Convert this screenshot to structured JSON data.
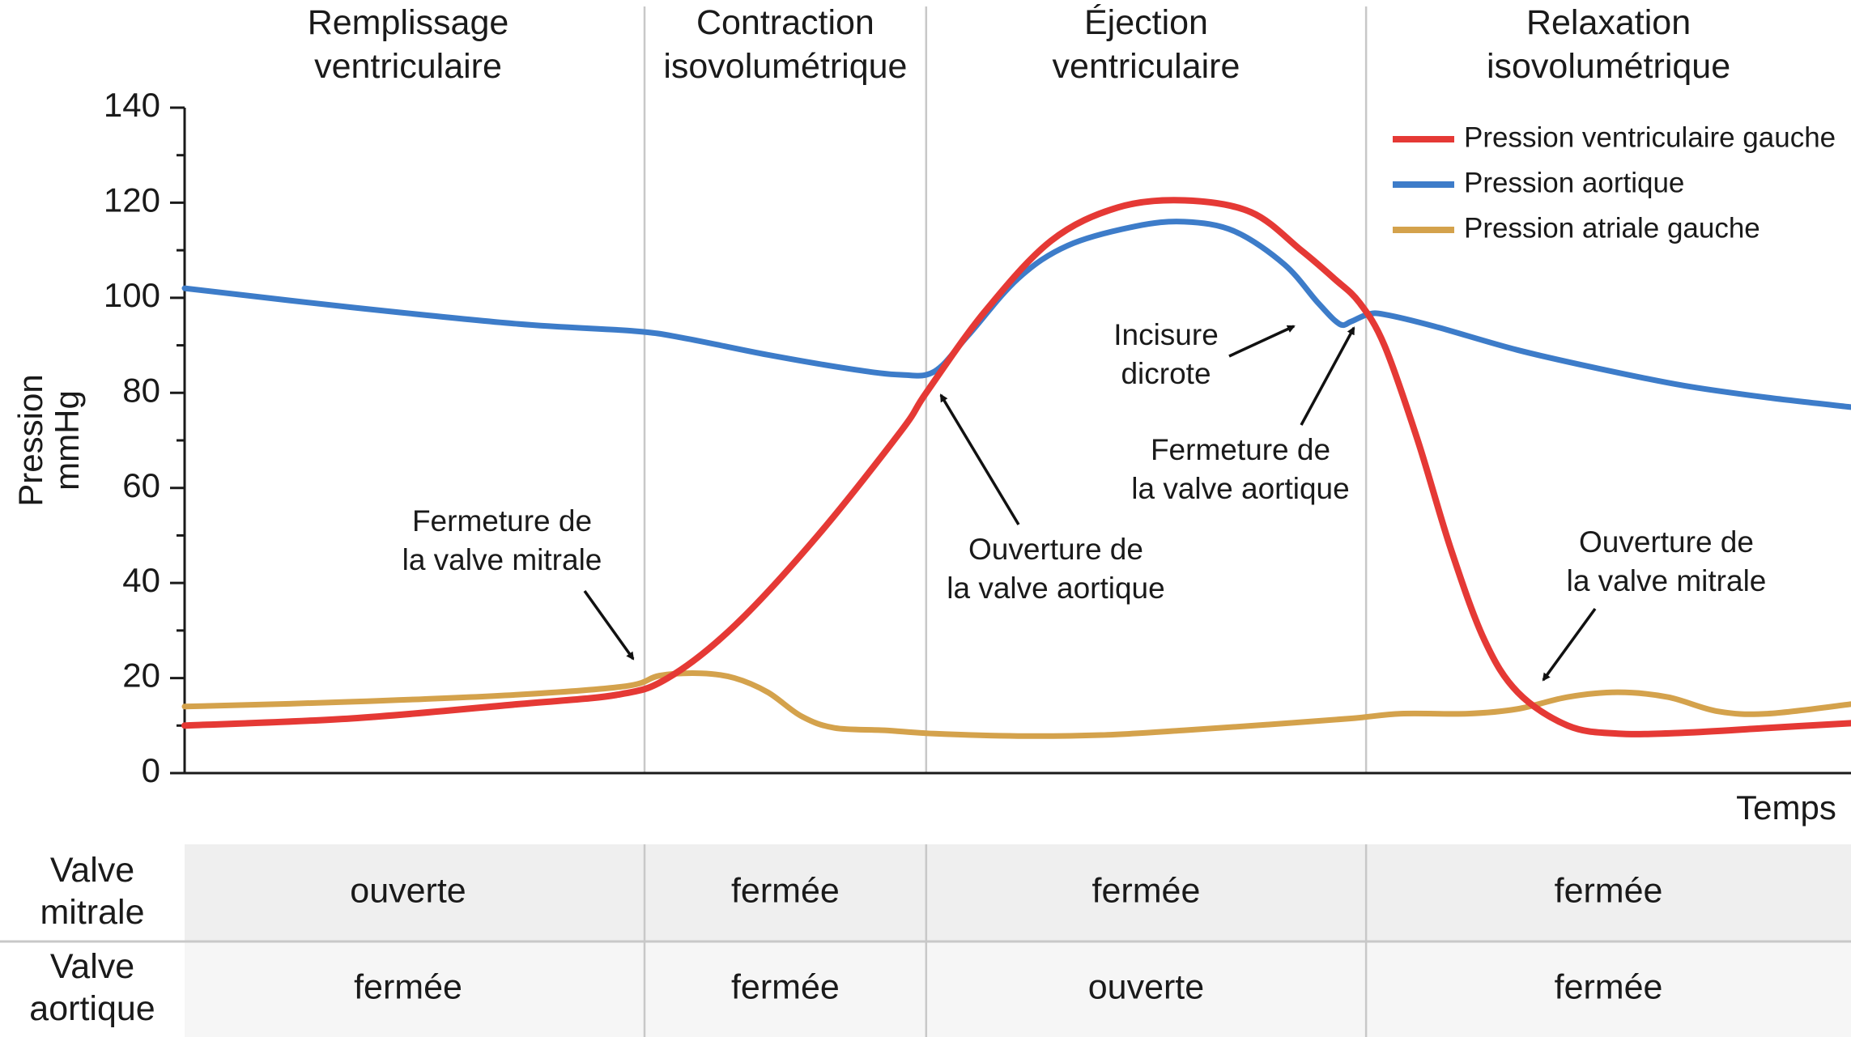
{
  "chart_data": {
    "type": "line",
    "xlabel": "Temps",
    "ylabel": [
      "Pression",
      "mmHg"
    ],
    "ylim": [
      0,
      140
    ],
    "yticks": [
      0,
      20,
      40,
      60,
      80,
      100,
      120,
      140
    ],
    "grid": false,
    "legend_position": "top-right",
    "phases": [
      {
        "name": [
          "Remplissage",
          "ventriculaire"
        ],
        "x_start": 0,
        "x_end": 0.276
      },
      {
        "name": [
          "Contraction",
          "isovolumétrique"
        ],
        "x_start": 0.276,
        "x_end": 0.445
      },
      {
        "name": [
          "Éjection",
          "ventriculaire"
        ],
        "x_start": 0.445,
        "x_end": 0.709
      },
      {
        "name": [
          "Relaxation",
          "isovolumétrique"
        ],
        "x_start": 0.709,
        "x_end": 1.0
      }
    ],
    "series": [
      {
        "name": "Pression ventriculaire gauche",
        "color": "#e53935",
        "points": [
          [
            0,
            10
          ],
          [
            0.1,
            11.5
          ],
          [
            0.2,
            14.5
          ],
          [
            0.26,
            16.5
          ],
          [
            0.29,
            20
          ],
          [
            0.33,
            31
          ],
          [
            0.38,
            50
          ],
          [
            0.43,
            72
          ],
          [
            0.445,
            80
          ],
          [
            0.48,
            97
          ],
          [
            0.52,
            112
          ],
          [
            0.56,
            119
          ],
          [
            0.6,
            120.5
          ],
          [
            0.64,
            118
          ],
          [
            0.67,
            110
          ],
          [
            0.69,
            104
          ],
          [
            0.705,
            99
          ],
          [
            0.72,
            90
          ],
          [
            0.74,
            70
          ],
          [
            0.76,
            47
          ],
          [
            0.78,
            28
          ],
          [
            0.8,
            17
          ],
          [
            0.83,
            10
          ],
          [
            0.86,
            8.3
          ],
          [
            0.9,
            8.5
          ],
          [
            0.95,
            9.5
          ],
          [
            1.0,
            10.5
          ]
        ]
      },
      {
        "name": "Pression aortique",
        "color": "#3d7cc9",
        "points": [
          [
            0,
            102
          ],
          [
            0.1,
            98
          ],
          [
            0.2,
            94.5
          ],
          [
            0.27,
            93
          ],
          [
            0.3,
            91.5
          ],
          [
            0.35,
            88
          ],
          [
            0.4,
            85
          ],
          [
            0.43,
            83.8
          ],
          [
            0.45,
            84.5
          ],
          [
            0.47,
            92
          ],
          [
            0.5,
            104
          ],
          [
            0.53,
            111
          ],
          [
            0.57,
            115
          ],
          [
            0.6,
            116
          ],
          [
            0.63,
            114
          ],
          [
            0.66,
            107
          ],
          [
            0.68,
            99
          ],
          [
            0.693,
            94.5
          ],
          [
            0.7,
            95
          ],
          [
            0.71,
            96.5
          ],
          [
            0.72,
            96.5
          ],
          [
            0.75,
            94
          ],
          [
            0.8,
            89
          ],
          [
            0.85,
            85
          ],
          [
            0.9,
            81.5
          ],
          [
            0.95,
            79
          ],
          [
            1.0,
            77
          ]
        ]
      },
      {
        "name": "Pression atriale gauche",
        "color": "#d4a24c",
        "points": [
          [
            0,
            14
          ],
          [
            0.1,
            15
          ],
          [
            0.2,
            16.5
          ],
          [
            0.265,
            18.3
          ],
          [
            0.285,
            20.5
          ],
          [
            0.31,
            21
          ],
          [
            0.33,
            20
          ],
          [
            0.35,
            17
          ],
          [
            0.37,
            12
          ],
          [
            0.39,
            9.5
          ],
          [
            0.42,
            9
          ],
          [
            0.45,
            8.3
          ],
          [
            0.5,
            7.8
          ],
          [
            0.55,
            8
          ],
          [
            0.6,
            9
          ],
          [
            0.65,
            10.2
          ],
          [
            0.7,
            11.5
          ],
          [
            0.73,
            12.5
          ],
          [
            0.77,
            12.5
          ],
          [
            0.8,
            13.5
          ],
          [
            0.83,
            16
          ],
          [
            0.86,
            17
          ],
          [
            0.89,
            16
          ],
          [
            0.92,
            13
          ],
          [
            0.95,
            12.5
          ],
          [
            1.0,
            14.5
          ]
        ]
      }
    ],
    "annotations": [
      {
        "lines": [
          "Fermeture de",
          "la valve mitrale"
        ]
      },
      {
        "lines": [
          "Ouverture de",
          "la valve aortique"
        ]
      },
      {
        "lines": [
          "Incisure",
          "dicrote"
        ]
      },
      {
        "lines": [
          "Fermeture de",
          "la valve aortique"
        ]
      },
      {
        "lines": [
          "Ouverture de",
          "la valve mitrale"
        ]
      }
    ],
    "table": {
      "rows": [
        {
          "header": [
            "Valve",
            "mitrale"
          ],
          "cells": [
            "ouverte",
            "fermée",
            "fermée",
            "fermée"
          ]
        },
        {
          "header": [
            "Valve",
            "aortique"
          ],
          "cells": [
            "fermée",
            "fermée",
            "ouverte",
            "fermée"
          ]
        }
      ]
    }
  }
}
